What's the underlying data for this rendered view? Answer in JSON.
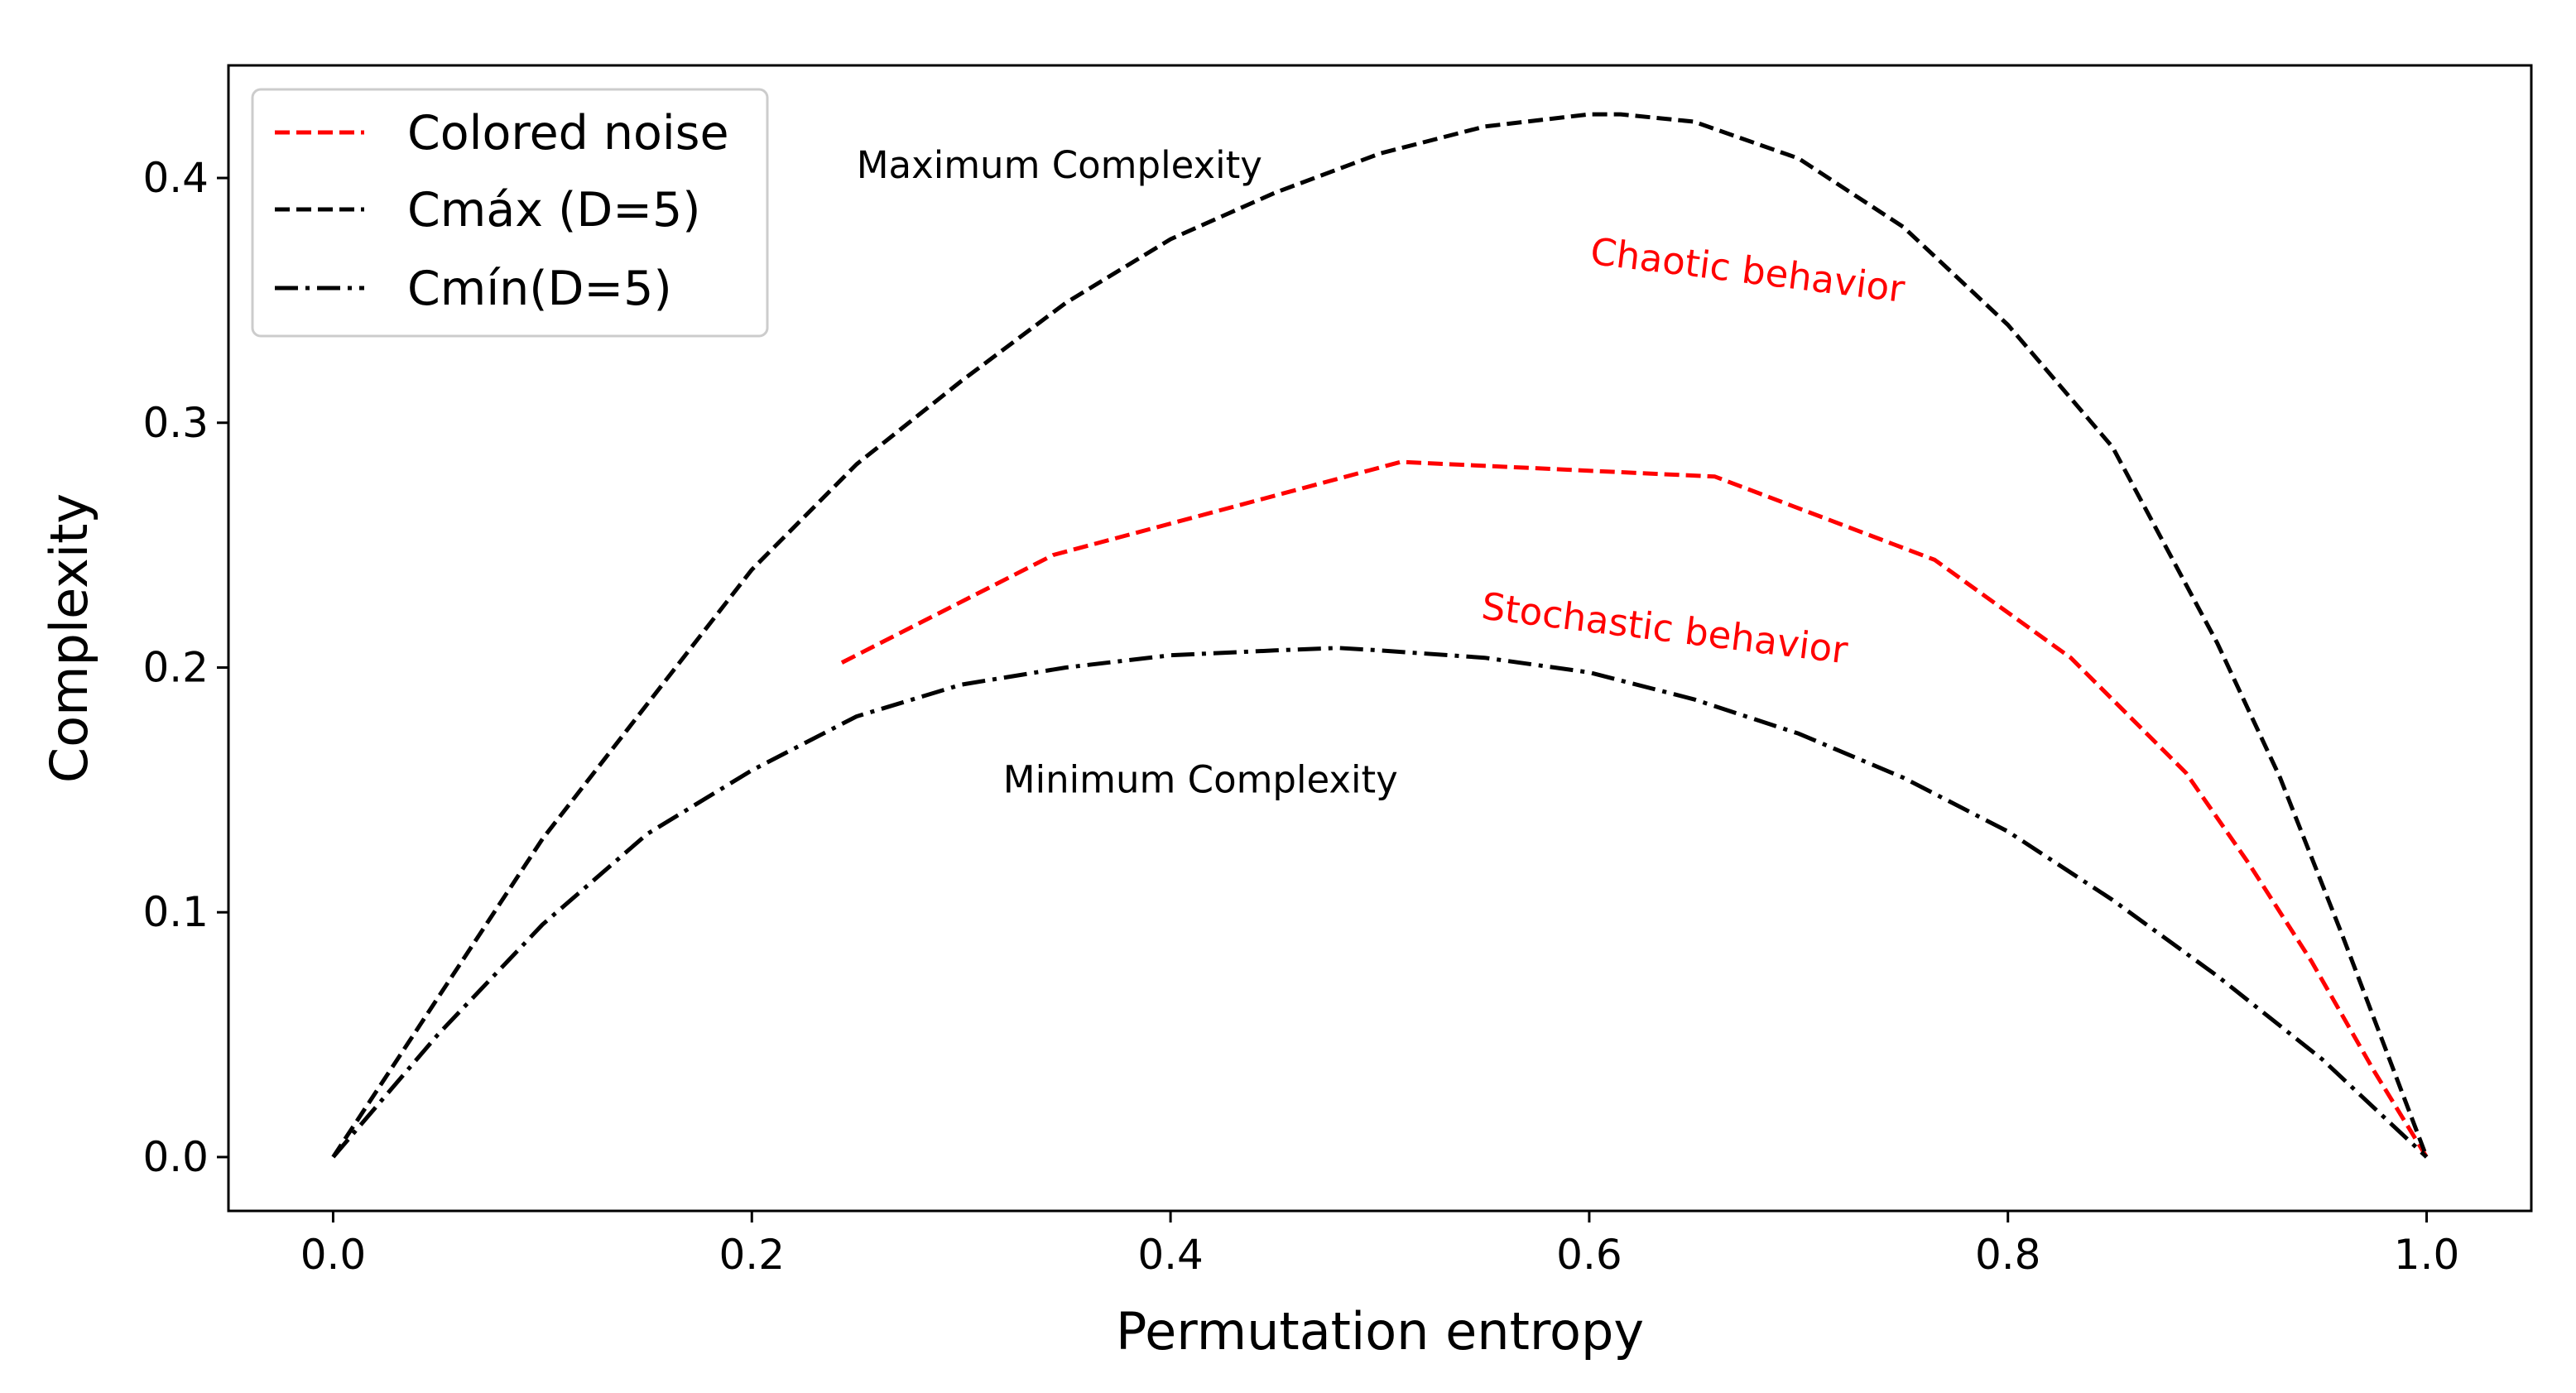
{
  "chart_data": {
    "type": "line",
    "title": "",
    "xlabel": "Permutation entropy",
    "ylabel": "Complexity",
    "xlim": [
      -0.05,
      1.05
    ],
    "ylim": [
      -0.022,
      0.446
    ],
    "xticks": [
      0.0,
      0.2,
      0.4,
      0.6,
      0.8,
      1.0
    ],
    "xtick_labels": [
      "0.0",
      "0.2",
      "0.4",
      "0.6",
      "0.8",
      "1.0"
    ],
    "yticks": [
      0.0,
      0.1,
      0.2,
      0.3,
      0.4
    ],
    "ytick_labels": [
      "0.0",
      "0.1",
      "0.2",
      "0.3",
      "0.4"
    ],
    "grid": false,
    "legend_position": "top-left",
    "series": [
      {
        "name": "Colored noise",
        "style": "dashed",
        "color": "#ff0000",
        "x": [
          0.243,
          0.344,
          0.51,
          0.66,
          0.765,
          0.83,
          0.885,
          0.915,
          0.945,
          0.975,
          1.0
        ],
        "y": [
          0.202,
          0.246,
          0.284,
          0.278,
          0.244,
          0.204,
          0.157,
          0.12,
          0.08,
          0.035,
          0.0
        ]
      },
      {
        "name": "Cmáx (D=5)",
        "style": "dashed",
        "color": "#000000",
        "x": [
          0.0,
          0.05,
          0.1,
          0.15,
          0.2,
          0.25,
          0.3,
          0.35,
          0.4,
          0.45,
          0.5,
          0.55,
          0.6,
          0.615,
          0.65,
          0.7,
          0.75,
          0.8,
          0.85,
          0.9,
          0.93,
          0.96,
          0.98,
          1.0
        ],
        "y": [
          0.0,
          0.065,
          0.13,
          0.185,
          0.24,
          0.283,
          0.317,
          0.349,
          0.375,
          0.394,
          0.41,
          0.421,
          0.426,
          0.426,
          0.423,
          0.408,
          0.38,
          0.34,
          0.29,
          0.21,
          0.155,
          0.09,
          0.045,
          0.0
        ]
      },
      {
        "name": "Cmín(D=5)",
        "style": "dashdot",
        "color": "#000000",
        "x": [
          0.0,
          0.05,
          0.1,
          0.15,
          0.2,
          0.25,
          0.3,
          0.35,
          0.4,
          0.45,
          0.48,
          0.5,
          0.55,
          0.6,
          0.65,
          0.7,
          0.75,
          0.8,
          0.85,
          0.9,
          0.95,
          1.0
        ],
        "y": [
          0.0,
          0.05,
          0.095,
          0.132,
          0.158,
          0.18,
          0.193,
          0.2,
          0.205,
          0.207,
          0.208,
          0.207,
          0.204,
          0.198,
          0.187,
          0.173,
          0.155,
          0.133,
          0.105,
          0.074,
          0.04,
          0.0
        ]
      }
    ],
    "annotations": [
      {
        "text": "Maximum Complexity",
        "x": 0.25,
        "y": 0.4,
        "color": "#000000",
        "rotation": 0
      },
      {
        "text": "Chaotic behavior",
        "x": 0.6,
        "y": 0.365,
        "color": "#ff0000",
        "rotation": 7
      },
      {
        "text": "Stochastic behavior",
        "x": 0.548,
        "y": 0.22,
        "color": "#ff0000",
        "rotation": 7
      },
      {
        "text": "Minimum Complexity",
        "x": 0.32,
        "y": 0.149,
        "color": "#000000",
        "rotation": 0
      }
    ]
  }
}
